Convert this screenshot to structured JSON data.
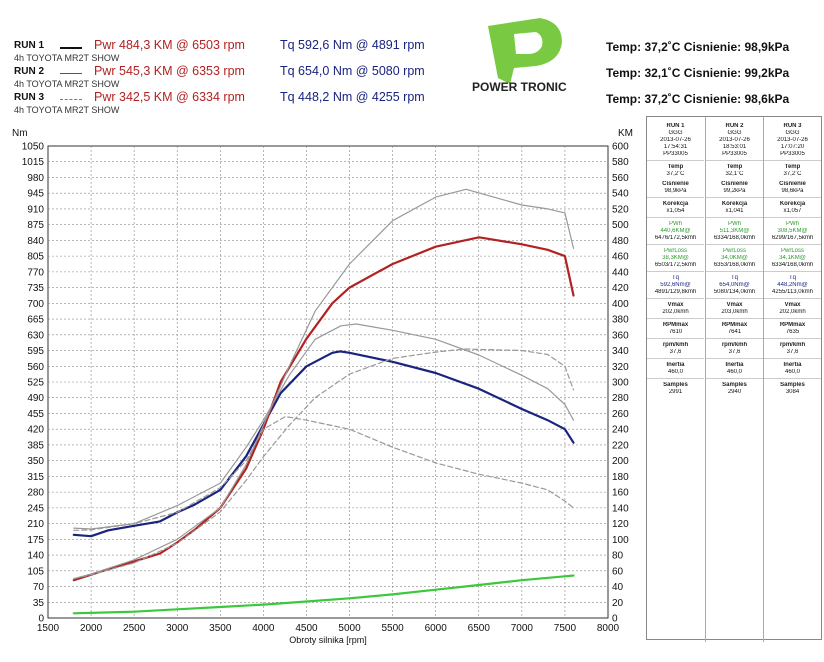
{
  "header": {
    "runs": [
      {
        "label": "RUN 1",
        "sub": "4h TOYOTA MR2T SHOW",
        "pwr": "Pwr  484,3 KM @ 6503 rpm",
        "tq": "Tq 592,6 Nm @ 4891 rpm",
        "env": "Temp: 37,2˚C   Cisnienie: 98,9kPa",
        "color": "#111111",
        "style": "solid"
      },
      {
        "label": "RUN 2",
        "sub": "4h TOYOTA MR2T SHOW",
        "pwr": "Pwr  545,3 KM @ 6353 rpm",
        "tq": "Tq 654,0 Nm @ 5080 rpm",
        "env": "Temp: 32,1˚C   Cisnienie: 99,2kPa",
        "color": "#555555",
        "style": "solid"
      },
      {
        "label": "RUN 3",
        "sub": "4h TOYOTA MR2T SHOW",
        "pwr": "Pwr  342,5 KM @ 6334 rpm",
        "tq": "Tq 448,2 Nm @ 4255 rpm",
        "env": "Temp: 37,2˚C   Cisnienie: 98,6kPa",
        "color": "#777777",
        "style": "dashed"
      }
    ],
    "logo_text": "POWER TRONIC"
  },
  "panel": {
    "columns": [
      {
        "run": "RUN 1",
        "name": "GGG",
        "date": "2013-07-26",
        "time": "17:54:31",
        "id": "PP33005",
        "temp_l": "Temp",
        "temp": "37,2˚C",
        "cis_l": "Cisnienie",
        "cis": "98,9kPa",
        "kor_l": "Korekcja",
        "kor": "x1,054",
        "pwh_l": "PWh",
        "pwh": "440,6KM@",
        "pwh2": "6476/172,5kmh",
        "ploss_l": "PwrLoss",
        "ploss": "38,3KM@",
        "ploss2": "6503/172,5kmh",
        "tq_l": "Tq",
        "tq": "592,6Nm@",
        "tq2": "4891/129,8kmh",
        "vmax_l": "Vmax",
        "vmax": "202,0kmh",
        "rpm_l": "RPMmax",
        "rpm": "7610",
        "rk_l": "rpm/kmh",
        "rk": "37,6",
        "in_l": "Inertia",
        "in": "460,0",
        "s_l": "Samples",
        "s": "2991"
      },
      {
        "run": "RUN 2",
        "name": "GGG",
        "date": "2013-07-26",
        "time": "18:53:01",
        "id": "PP33005",
        "temp_l": "Temp",
        "temp": "32,1˚C",
        "cis_l": "Cisnienie",
        "cis": "99,2kPa",
        "kor_l": "Korekcja",
        "kor": "x1,041",
        "pwh_l": "PWh",
        "pwh": "511,3KM@",
        "pwh2": "6334/168,0kmh",
        "ploss_l": "PwrLoss",
        "ploss": "34,0KM@",
        "ploss2": "6353/168,0kmh",
        "tq_l": "Tq",
        "tq": "654,0Nm@",
        "tq2": "5080/134,0kmh",
        "vmax_l": "Vmax",
        "vmax": "203,0kmh",
        "rpm_l": "RPMmax",
        "rpm": "7641",
        "rk_l": "rpm/kmh",
        "rk": "37,6",
        "in_l": "Inertia",
        "in": "460,0",
        "s_l": "Samples",
        "s": "2940"
      },
      {
        "run": "RUN 3",
        "name": "GGG",
        "date": "2013-07-26",
        "time": "17:07:20",
        "id": "PP33005",
        "temp_l": "Temp",
        "temp": "37,2˚C",
        "cis_l": "Cisnienie",
        "cis": "98,6kPa",
        "kor_l": "Korekcja",
        "kor": "x1,057",
        "pwh_l": "PWh",
        "pwh": "308,5KM@",
        "pwh2": "6299/167,5kmh",
        "ploss_l": "PwrLoss",
        "ploss": "34,1KM@",
        "ploss2": "6334/168,0kmh",
        "tq_l": "Tq",
        "tq": "448,2Nm@",
        "tq2": "4255/113,0kmh",
        "vmax_l": "Vmax",
        "vmax": "202,0kmh",
        "rpm_l": "RPMmax",
        "rpm": "7635",
        "rk_l": "rpm/kmh",
        "rk": "37,6",
        "in_l": "Inertia",
        "in": "460,0",
        "s_l": "Samples",
        "s": "3084"
      }
    ]
  },
  "chart_data": {
    "type": "line",
    "xlabel": "Obroty silnika [rpm]",
    "ylabel_left": "Nm",
    "ylabel_right": "KM",
    "xlim": [
      1500,
      8000
    ],
    "ylim_left": [
      0,
      1050
    ],
    "ylim_right": [
      0,
      600
    ],
    "x_ticks": [
      1500,
      2000,
      2500,
      3000,
      3500,
      4000,
      4500,
      5000,
      5500,
      6000,
      6500,
      7000,
      7500,
      8000
    ],
    "y_left_ticks": [
      0,
      35,
      70,
      105,
      140,
      175,
      210,
      245,
      280,
      315,
      350,
      385,
      420,
      455,
      490,
      525,
      560,
      595,
      630,
      665,
      700,
      735,
      770,
      805,
      840,
      875,
      910,
      945,
      980,
      1015,
      1050
    ],
    "y_right_ticks": [
      0,
      20,
      40,
      60,
      80,
      100,
      120,
      140,
      160,
      180,
      200,
      220,
      240,
      260,
      280,
      300,
      320,
      340,
      360,
      380,
      400,
      420,
      440,
      460,
      480,
      500,
      520,
      540,
      560,
      580,
      600
    ],
    "grid": true,
    "series": [
      {
        "axis": "left",
        "color": "#1a237e",
        "width": 2.2,
        "dash": "",
        "x": [
          1800,
          2000,
          2200,
          2500,
          2800,
          3000,
          3200,
          3500,
          3800,
          4000,
          4200,
          4500,
          4800,
          4891,
          5000,
          5500,
          6000,
          6500,
          7000,
          7300,
          7500,
          7600
        ],
        "y": [
          185,
          182,
          195,
          205,
          215,
          235,
          252,
          285,
          360,
          430,
          500,
          560,
          590,
          593,
          590,
          570,
          545,
          510,
          465,
          440,
          420,
          390
        ]
      },
      {
        "axis": "right",
        "color": "#b22222",
        "width": 2.2,
        "dash": "",
        "x": [
          1800,
          2000,
          2200,
          2500,
          2800,
          3000,
          3200,
          3500,
          3800,
          4000,
          4200,
          4500,
          4800,
          5000,
          5500,
          6000,
          6503,
          7000,
          7300,
          7500,
          7600
        ],
        "y": [
          48,
          55,
          62,
          72,
          82,
          96,
          112,
          140,
          190,
          240,
          300,
          355,
          400,
          420,
          450,
          472,
          484,
          475,
          468,
          460,
          410
        ]
      },
      {
        "axis": "left",
        "color": "#999999",
        "width": 1.2,
        "dash": "",
        "x": [
          1800,
          2000,
          2500,
          3000,
          3500,
          3800,
          4000,
          4300,
          4600,
          4900,
          5080,
          5500,
          6000,
          6500,
          7000,
          7300,
          7500,
          7600
        ],
        "y": [
          200,
          198,
          210,
          250,
          300,
          380,
          440,
          540,
          620,
          650,
          654,
          640,
          620,
          585,
          540,
          510,
          475,
          440
        ]
      },
      {
        "axis": "right",
        "color": "#999999",
        "width": 1.2,
        "dash": "",
        "x": [
          1800,
          2000,
          2500,
          3000,
          3500,
          3800,
          4000,
          4300,
          4600,
          5000,
          5500,
          6000,
          6353,
          7000,
          7300,
          7500,
          7600
        ],
        "y": [
          50,
          56,
          74,
          100,
          140,
          195,
          245,
          320,
          390,
          450,
          505,
          535,
          545,
          525,
          520,
          515,
          470
        ]
      },
      {
        "axis": "left",
        "color": "#999999",
        "width": 1.2,
        "dash": "5,3",
        "x": [
          1800,
          2000,
          2500,
          3000,
          3500,
          3800,
          4000,
          4255,
          4500,
          5000,
          5500,
          6000,
          6500,
          7000,
          7300,
          7500,
          7600
        ],
        "y": [
          195,
          196,
          210,
          235,
          290,
          350,
          420,
          448,
          440,
          420,
          380,
          345,
          320,
          300,
          285,
          260,
          245
        ]
      },
      {
        "axis": "right",
        "color": "#999999",
        "width": 1.2,
        "dash": "5,3",
        "x": [
          1800,
          2000,
          2500,
          3000,
          3500,
          3800,
          4000,
          4300,
          4600,
          5000,
          5500,
          6000,
          6334,
          7000,
          7300,
          7500,
          7600
        ],
        "y": [
          50,
          55,
          70,
          95,
          135,
          175,
          205,
          245,
          280,
          310,
          330,
          338,
          342,
          340,
          335,
          320,
          290
        ]
      },
      {
        "axis": "right",
        "color": "#3cc83c",
        "width": 2.2,
        "dash": "",
        "x": [
          1800,
          2500,
          3000,
          3500,
          4000,
          4500,
          5000,
          5500,
          6000,
          6500,
          7000,
          7500,
          7600
        ],
        "y": [
          6,
          8,
          11,
          14,
          17,
          21,
          25,
          30,
          36,
          42,
          48,
          53,
          54
        ]
      }
    ]
  }
}
